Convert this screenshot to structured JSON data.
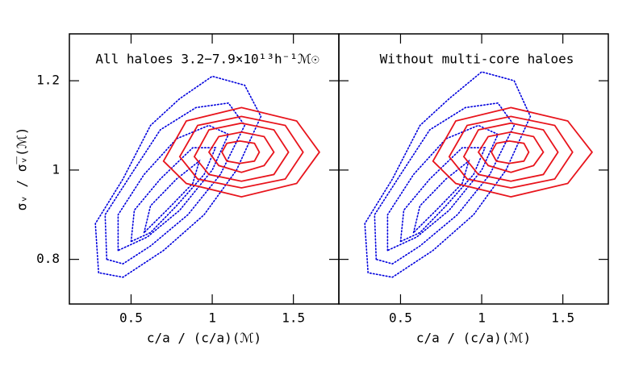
{
  "chart_data": [
    {
      "type": "contour",
      "annotation": "All haloes 3.2−7.9×10¹³h⁻¹ℳ☉",
      "x_label": "c/a / (c/a)(ℳ)",
      "y_label": "σᵥ / σ̅ᵥ(ℳ)",
      "xlim": [
        0.12,
        1.78
      ],
      "ylim": [
        0.7,
        1.305
      ],
      "xticks": [
        0.5,
        1,
        1.5
      ],
      "yticks": [
        0.8,
        1,
        1.2
      ],
      "contours": [
        {
          "color": "#0000dd",
          "style": "dotted",
          "x": [
            0.3,
            0.28,
            0.45,
            0.62,
            0.8,
            1.0,
            1.2,
            1.3,
            1.15,
            0.95,
            0.7,
            0.45
          ],
          "y": [
            0.77,
            0.88,
            0.98,
            1.1,
            1.16,
            1.21,
            1.19,
            1.12,
            1.0,
            0.9,
            0.82,
            0.76
          ]
        },
        {
          "color": "#0000dd",
          "style": "dotted",
          "x": [
            0.35,
            0.34,
            0.5,
            0.68,
            0.9,
            1.1,
            1.2,
            1.05,
            0.85,
            0.62,
            0.45
          ],
          "y": [
            0.8,
            0.9,
            0.99,
            1.09,
            1.14,
            1.15,
            1.1,
            0.99,
            0.9,
            0.83,
            0.79
          ]
        },
        {
          "color": "#0000dd",
          "style": "dotted",
          "x": [
            0.42,
            0.42,
            0.58,
            0.78,
            0.98,
            1.1,
            1.0,
            0.8,
            0.6
          ],
          "y": [
            0.82,
            0.9,
            0.99,
            1.07,
            1.1,
            1.08,
            1.0,
            0.91,
            0.85
          ]
        },
        {
          "color": "#0000dd",
          "style": "dotted",
          "x": [
            0.5,
            0.52,
            0.68,
            0.88,
            1.02,
            0.95,
            0.78,
            0.62
          ],
          "y": [
            0.84,
            0.91,
            0.98,
            1.05,
            1.05,
            0.99,
            0.92,
            0.86
          ]
        },
        {
          "color": "#0000dd",
          "style": "dotted",
          "x": [
            0.58,
            0.62,
            0.78,
            0.92,
            0.88,
            0.72
          ],
          "y": [
            0.86,
            0.92,
            0.98,
            1.02,
            0.97,
            0.91
          ]
        },
        {
          "color": "#e8141c",
          "style": "solid",
          "x": [
            1.66,
            1.52,
            1.18,
            0.84,
            0.7,
            0.84,
            1.18,
            1.52
          ],
          "y": [
            1.04,
            1.11,
            1.14,
            1.11,
            1.02,
            0.97,
            0.94,
            0.97
          ]
        },
        {
          "color": "#e8141c",
          "style": "solid",
          "x": [
            1.56,
            1.45,
            1.18,
            0.91,
            0.8,
            0.91,
            1.18,
            1.45
          ],
          "y": [
            1.04,
            1.1,
            1.12,
            1.1,
            1.03,
            0.98,
            0.96,
            0.98
          ]
        },
        {
          "color": "#e8141c",
          "style": "solid",
          "x": [
            1.47,
            1.38,
            1.18,
            0.98,
            0.89,
            0.98,
            1.18,
            1.38
          ],
          "y": [
            1.04,
            1.09,
            1.105,
            1.09,
            1.03,
            0.99,
            0.975,
            0.99
          ]
        },
        {
          "color": "#e8141c",
          "style": "solid",
          "x": [
            1.38,
            1.32,
            1.18,
            1.04,
            0.98,
            1.04,
            1.18,
            1.32
          ],
          "y": [
            1.04,
            1.075,
            1.085,
            1.075,
            1.04,
            1.01,
            0.995,
            1.01
          ]
        },
        {
          "color": "#e8141c",
          "style": "solid",
          "x": [
            1.29,
            1.26,
            1.17,
            1.09,
            1.06,
            1.09,
            1.17,
            1.26
          ],
          "y": [
            1.04,
            1.06,
            1.065,
            1.06,
            1.04,
            1.02,
            1.015,
            1.02
          ]
        }
      ]
    },
    {
      "type": "contour",
      "annotation": "Without multi-core haloes",
      "x_label": "c/a / (c/a)(ℳ)",
      "xlim": [
        0.12,
        1.78
      ],
      "ylim": [
        0.7,
        1.305
      ],
      "xticks": [
        0.5,
        1,
        1.5
      ],
      "yticks": [
        0.8,
        1,
        1.2
      ],
      "contours": [
        {
          "color": "#0000dd",
          "style": "dotted",
          "x": [
            0.3,
            0.28,
            0.45,
            0.62,
            0.8,
            1.0,
            1.2,
            1.3,
            1.15,
            0.95,
            0.7,
            0.45
          ],
          "y": [
            0.77,
            0.88,
            0.98,
            1.1,
            1.16,
            1.22,
            1.2,
            1.12,
            1.0,
            0.9,
            0.82,
            0.76
          ]
        },
        {
          "color": "#0000dd",
          "style": "dotted",
          "x": [
            0.35,
            0.34,
            0.5,
            0.68,
            0.9,
            1.1,
            1.2,
            1.05,
            0.85,
            0.62,
            0.45
          ],
          "y": [
            0.8,
            0.9,
            0.99,
            1.09,
            1.14,
            1.15,
            1.1,
            0.99,
            0.9,
            0.83,
            0.79
          ]
        },
        {
          "color": "#0000dd",
          "style": "dotted",
          "x": [
            0.42,
            0.42,
            0.58,
            0.78,
            0.98,
            1.1,
            1.0,
            0.8,
            0.6
          ],
          "y": [
            0.82,
            0.9,
            0.99,
            1.07,
            1.1,
            1.08,
            1.0,
            0.91,
            0.85
          ]
        },
        {
          "color": "#0000dd",
          "style": "dotted",
          "x": [
            0.5,
            0.52,
            0.68,
            0.88,
            1.02,
            0.95,
            0.78,
            0.62
          ],
          "y": [
            0.84,
            0.91,
            0.98,
            1.05,
            1.05,
            0.99,
            0.92,
            0.86
          ]
        },
        {
          "color": "#0000dd",
          "style": "dotted",
          "x": [
            0.58,
            0.62,
            0.78,
            0.92,
            0.88,
            0.72
          ],
          "y": [
            0.86,
            0.92,
            0.98,
            1.02,
            0.97,
            0.91
          ]
        },
        {
          "color": "#e8141c",
          "style": "solid",
          "x": [
            1.68,
            1.53,
            1.18,
            0.84,
            0.7,
            0.84,
            1.18,
            1.53
          ],
          "y": [
            1.04,
            1.11,
            1.14,
            1.11,
            1.02,
            0.97,
            0.94,
            0.97
          ]
        },
        {
          "color": "#e8141c",
          "style": "solid",
          "x": [
            1.56,
            1.45,
            1.18,
            0.91,
            0.8,
            0.91,
            1.18,
            1.45
          ],
          "y": [
            1.04,
            1.1,
            1.12,
            1.1,
            1.03,
            0.98,
            0.96,
            0.98
          ]
        },
        {
          "color": "#e8141c",
          "style": "solid",
          "x": [
            1.47,
            1.38,
            1.18,
            0.98,
            0.89,
            0.98,
            1.18,
            1.38
          ],
          "y": [
            1.04,
            1.09,
            1.105,
            1.09,
            1.03,
            0.99,
            0.975,
            0.99
          ]
        },
        {
          "color": "#e8141c",
          "style": "solid",
          "x": [
            1.38,
            1.32,
            1.18,
            1.04,
            0.98,
            1.04,
            1.18,
            1.32
          ],
          "y": [
            1.04,
            1.075,
            1.085,
            1.075,
            1.04,
            1.01,
            0.995,
            1.01
          ]
        },
        {
          "color": "#e8141c",
          "style": "solid",
          "x": [
            1.29,
            1.26,
            1.17,
            1.09,
            1.06,
            1.09,
            1.17,
            1.26
          ],
          "y": [
            1.04,
            1.06,
            1.065,
            1.06,
            1.04,
            1.02,
            1.015,
            1.02
          ]
        }
      ]
    }
  ]
}
